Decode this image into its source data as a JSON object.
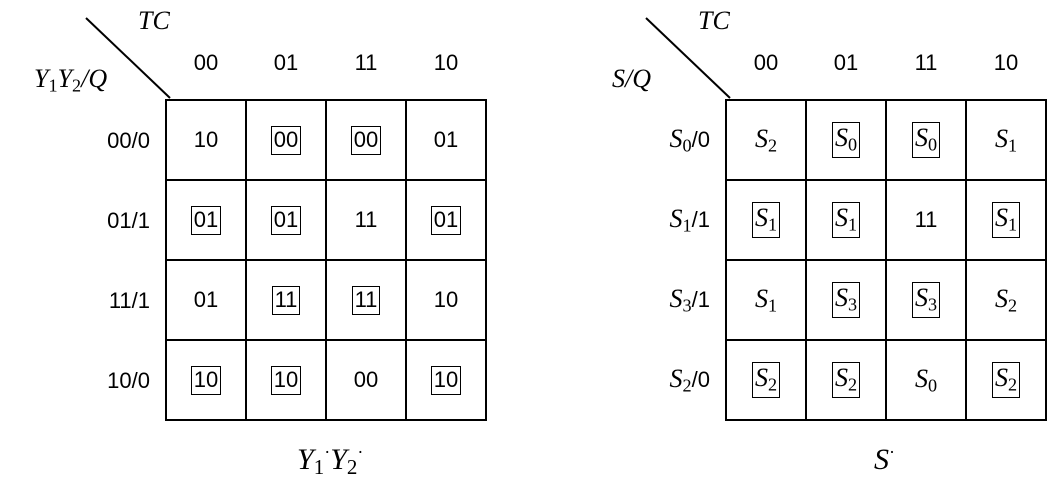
{
  "left_map": {
    "corner_top": "TC",
    "corner_left": "Y1Y2/Q",
    "columns": [
      "00",
      "01",
      "11",
      "10"
    ],
    "rows": [
      "00/0",
      "01/1",
      "11/1",
      "10/0"
    ],
    "cells": [
      [
        {
          "t": "10",
          "boxed": false
        },
        {
          "t": "00",
          "boxed": true
        },
        {
          "t": "00",
          "boxed": true
        },
        {
          "t": "01",
          "boxed": false
        }
      ],
      [
        {
          "t": "01",
          "boxed": true
        },
        {
          "t": "01",
          "boxed": true
        },
        {
          "t": "11",
          "boxed": false
        },
        {
          "t": "01",
          "boxed": true
        }
      ],
      [
        {
          "t": "01",
          "boxed": false
        },
        {
          "t": "11",
          "boxed": true
        },
        {
          "t": "11",
          "boxed": true
        },
        {
          "t": "10",
          "boxed": false
        }
      ],
      [
        {
          "t": "10",
          "boxed": true
        },
        {
          "t": "10",
          "boxed": true
        },
        {
          "t": "00",
          "boxed": false
        },
        {
          "t": "10",
          "boxed": true
        }
      ]
    ],
    "caption": "Y1'Y2'"
  },
  "right_map": {
    "corner_top": "TC",
    "corner_left": "S/Q",
    "columns": [
      "00",
      "01",
      "11",
      "10"
    ],
    "rows": [
      {
        "state": "S",
        "sub": "0",
        "rest": "/0"
      },
      {
        "state": "S",
        "sub": "1",
        "rest": "/1"
      },
      {
        "state": "S",
        "sub": "3",
        "rest": "/1"
      },
      {
        "state": "S",
        "sub": "2",
        "rest": "/0"
      }
    ],
    "cells": [
      [
        {
          "s": "S",
          "sub": "2",
          "boxed": false
        },
        {
          "s": "S",
          "sub": "0",
          "boxed": true
        },
        {
          "s": "S",
          "sub": "0",
          "boxed": true
        },
        {
          "s": "S",
          "sub": "1",
          "boxed": false
        }
      ],
      [
        {
          "s": "S",
          "sub": "1",
          "boxed": true
        },
        {
          "s": "S",
          "sub": "1",
          "boxed": true
        },
        {
          "s": "11",
          "sub": "",
          "boxed": false
        },
        {
          "s": "S",
          "sub": "1",
          "boxed": true
        }
      ],
      [
        {
          "s": "S",
          "sub": "1",
          "boxed": false
        },
        {
          "s": "S",
          "sub": "3",
          "boxed": true
        },
        {
          "s": "S",
          "sub": "3",
          "boxed": true
        },
        {
          "s": "S",
          "sub": "2",
          "boxed": false
        }
      ],
      [
        {
          "s": "S",
          "sub": "2",
          "boxed": true
        },
        {
          "s": "S",
          "sub": "2",
          "boxed": true
        },
        {
          "s": "S",
          "sub": "0",
          "boxed": false
        },
        {
          "s": "S",
          "sub": "2",
          "boxed": true
        }
      ]
    ],
    "caption": "S'"
  }
}
